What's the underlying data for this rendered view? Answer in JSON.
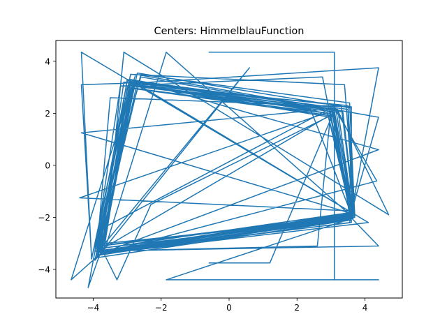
{
  "chart_data": {
    "type": "line",
    "title": "Centers: HimmelblauFunction",
    "xlabel": "",
    "ylabel": "",
    "xlim": [
      -5.1,
      5.1
    ],
    "ylim": [
      -5.1,
      4.8
    ],
    "xticks": [
      -4,
      -2,
      0,
      2,
      4
    ],
    "yticks": [
      -4,
      -2,
      0,
      2,
      4
    ],
    "xtick_labels": [
      "−4",
      "−2",
      "0",
      "2",
      "4"
    ],
    "ytick_labels": [
      "−4",
      "−2",
      "0",
      "2",
      "4"
    ],
    "grid": false,
    "series": [
      {
        "color": "#1f77b4",
        "points": [
          [
            -0.6,
            -3.75
          ],
          [
            1.2,
            -3.75
          ],
          [
            3.1,
            2.1
          ],
          [
            3.65,
            -1.95
          ],
          [
            -3.8,
            -3.45
          ],
          [
            -2.8,
            3.1
          ],
          [
            3.5,
            2.3
          ],
          [
            3.7,
            -1.85
          ],
          [
            -3.9,
            -3.3
          ],
          [
            -2.7,
            3.55
          ],
          [
            3.6,
            2.2
          ],
          [
            3.6,
            -2.2
          ],
          [
            -3.75,
            -3.35
          ],
          [
            -2.8,
            3.1
          ],
          [
            3.0,
            1.85
          ],
          [
            3.65,
            -1.8
          ],
          [
            -3.8,
            -3.2
          ],
          [
            -3.1,
            3.2
          ],
          [
            3.3,
            2.3
          ],
          [
            3.7,
            -2.0
          ],
          [
            -3.75,
            -3.4
          ],
          [
            -2.8,
            2.95
          ],
          [
            3.1,
            1.9
          ],
          [
            3.6,
            -2.1
          ],
          [
            -3.9,
            -3.55
          ],
          [
            -2.6,
            3.5
          ],
          [
            3.55,
            2.4
          ],
          [
            3.7,
            -1.95
          ],
          [
            -3.8,
            -3.1
          ],
          [
            -3.0,
            3.3
          ],
          [
            2.9,
            2.0
          ],
          [
            3.6,
            -1.9
          ],
          [
            -3.7,
            -3.35
          ],
          [
            -2.9,
            3.1
          ],
          [
            3.2,
            2.15
          ],
          [
            3.65,
            -1.85
          ],
          [
            -4.35,
            4.35
          ],
          [
            -4.05,
            -3.6
          ],
          [
            -2.9,
            3.5
          ],
          [
            3.4,
            3.1
          ],
          [
            3.7,
            -1.9
          ],
          [
            -3.9,
            -3.35
          ],
          [
            -3.5,
            2.6
          ],
          [
            3.6,
            2.25
          ],
          [
            3.55,
            -1.75
          ],
          [
            -4.4,
            -1.25
          ],
          [
            3.05,
            2.1
          ],
          [
            3.6,
            -2.05
          ],
          [
            -3.65,
            -3.0
          ],
          [
            -3.1,
            4.35
          ],
          [
            4.7,
            -1.9
          ],
          [
            3.2,
            2.1
          ],
          [
            -3.85,
            -3.3
          ],
          [
            -2.9,
            3.15
          ],
          [
            4.4,
            3.75
          ],
          [
            3.55,
            -2.2
          ],
          [
            -3.8,
            -3.4
          ],
          [
            -4.15,
            -4.7
          ],
          [
            -3.0,
            3.25
          ],
          [
            3.15,
            2.1
          ],
          [
            3.65,
            -1.85
          ],
          [
            -3.75,
            -3.35
          ],
          [
            -4.65,
            -4.4
          ],
          [
            -2.75,
            3.5
          ],
          [
            4.4,
            1.85
          ],
          [
            3.6,
            -1.8
          ],
          [
            -3.8,
            -3.45
          ],
          [
            -2.8,
            3.05
          ],
          [
            2.4,
            2.15
          ],
          [
            3.65,
            -2.05
          ],
          [
            -3.9,
            -3.2
          ],
          [
            -2.8,
            3.2
          ],
          [
            4.1,
            -2.2
          ],
          [
            -3.7,
            -3.4
          ],
          [
            -1.85,
            4.35
          ],
          [
            3.6,
            -1.95
          ],
          [
            -3.8,
            -3.3
          ],
          [
            -3.7,
            -2.4
          ],
          [
            3.0,
            2.2
          ],
          [
            3.65,
            -2.05
          ],
          [
            -3.85,
            -3.45
          ],
          [
            -2.9,
            3.3
          ],
          [
            3.1,
            1.95
          ],
          [
            3.55,
            -1.95
          ],
          [
            4.4,
            -3.1
          ],
          [
            -3.95,
            -3.3
          ],
          [
            -3.2,
            3.05
          ],
          [
            2.75,
            3.4
          ],
          [
            3.6,
            -2.1
          ],
          [
            -3.8,
            -3.35
          ],
          [
            -2.7,
            3.2
          ],
          [
            -3.2,
            3.15
          ],
          [
            -4.35,
            3.1
          ],
          [
            -4.05,
            -3.55
          ],
          [
            -2.6,
            3.4
          ],
          [
            3.35,
            2.05
          ],
          [
            3.7,
            -1.9
          ],
          [
            -3.9,
            -3.1
          ],
          [
            -2.9,
            3.3
          ],
          [
            4.4,
            0.6
          ],
          [
            -3.7,
            -3.35
          ],
          [
            -3.3,
            -4.4
          ],
          [
            -2.3,
            -1.5
          ],
          [
            3.05,
            1.95
          ],
          [
            3.6,
            -2.0
          ],
          [
            -3.8,
            -3.4
          ],
          [
            -2.8,
            3.2
          ],
          [
            3.2,
            2.2
          ],
          [
            -4.35,
            1.25
          ],
          [
            3.6,
            -1.85
          ],
          [
            -3.85,
            -3.3
          ],
          [
            0.6,
            3.75
          ],
          [
            -3.95,
            -3.65
          ],
          [
            -2.85,
            3.1
          ],
          [
            3.1,
            2.05
          ],
          [
            3.65,
            -1.95
          ],
          [
            -3.8,
            -3.35
          ],
          [
            -2.8,
            3.2
          ],
          [
            3.0,
            2.15
          ],
          [
            2.6,
            -3.1
          ],
          [
            -3.75,
            -3.3
          ],
          [
            -3.0,
            3.0
          ],
          [
            2.9,
            2.0
          ],
          [
            3.7,
            -2.0
          ],
          [
            -3.9,
            -3.45
          ],
          [
            -2.85,
            3.05
          ],
          [
            3.15,
            2.1
          ],
          [
            4.35,
            -0.6
          ],
          [
            -3.8,
            -3.4
          ],
          [
            -2.75,
            3.25
          ],
          [
            3.5,
            2.15
          ],
          [
            3.65,
            -1.9
          ],
          [
            -3.85,
            -3.3
          ],
          [
            -2.9,
            3.15
          ],
          [
            3.0,
            1.9
          ],
          [
            3.6,
            -2.05
          ],
          [
            -1.85,
            -4.4
          ],
          [
            4.4,
            -4.4
          ],
          [
            3.1,
            -4.4
          ],
          [
            3.1,
            4.35
          ],
          [
            -0.6,
            4.35
          ],
          [
            -0.6,
            4.35
          ]
        ]
      }
    ]
  }
}
